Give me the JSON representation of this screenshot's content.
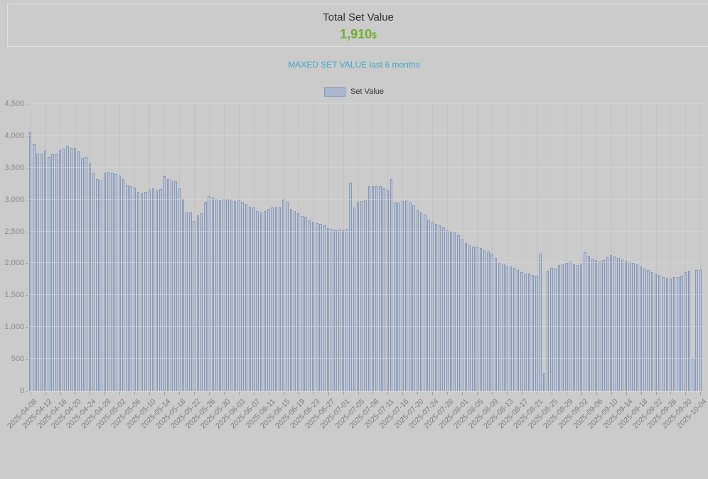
{
  "header": {
    "title": "Total Set Value",
    "value": "1,910",
    "currency_suffix": "$"
  },
  "subtitle": "MAXED SET VALUE last 6 months",
  "legend": {
    "items": [
      {
        "label": "Set Value"
      }
    ]
  },
  "colors": {
    "page_bg": "#cbcbcb",
    "accent_green": "#6fae2d",
    "accent_teal": "#3da8c5",
    "bar_fill": "#a9b7d1",
    "bar_light": "#c6cfe2",
    "bar_border": "#8294b7"
  },
  "chart_data": {
    "type": "bar",
    "title": "MAXED SET VALUE last 6 months",
    "legend_entries": [
      "Set Value"
    ],
    "legend_position": "top-center",
    "grid": true,
    "ylim": [
      0,
      4500
    ],
    "y_tick_step": 500,
    "bars_per_x_tick": 4,
    "x_tick_labels": [
      "2025-04-08",
      "2025-04-12",
      "2025-04-16",
      "2025-04-20",
      "2025-04-24",
      "2025-04-28",
      "2025-05-02",
      "2025-05-06",
      "2025-05-10",
      "2025-05-14",
      "2025-05-18",
      "2025-05-22",
      "2025-05-26",
      "2025-05-30",
      "2025-06-03",
      "2025-06-07",
      "2025-06-11",
      "2025-06-15",
      "2025-06-19",
      "2025-06-23",
      "2025-06-27",
      "2025-07-01",
      "2025-07-05",
      "2025-07-08",
      "2025-07-11",
      "2025-07-16",
      "2025-07-20",
      "2025-07-24",
      "2025-07-28",
      "2025-08-01",
      "2025-08-05",
      "2025-08-09",
      "2025-08-13",
      "2025-08-17",
      "2025-08-21",
      "2025-08-25",
      "2025-08-29",
      "2025-09-02",
      "2025-09-06",
      "2025-09-10",
      "2025-09-14",
      "2025-09-18",
      "2025-09-22",
      "2025-09-26",
      "2025-09-30",
      "2025-10-04"
    ],
    "series": [
      {
        "name": "Set Value",
        "values": [
          4050,
          3870,
          3720,
          3725,
          3760,
          3670,
          3705,
          3720,
          3780,
          3795,
          3840,
          3810,
          3815,
          3750,
          3655,
          3660,
          3570,
          3415,
          3320,
          3300,
          3415,
          3430,
          3420,
          3395,
          3370,
          3320,
          3225,
          3210,
          3190,
          3115,
          3095,
          3115,
          3150,
          3180,
          3145,
          3165,
          3360,
          3320,
          3295,
          3285,
          3170,
          3010,
          2800,
          2800,
          2660,
          2750,
          2790,
          2965,
          3050,
          3035,
          3010,
          2985,
          3010,
          3005,
          2995,
          2975,
          2985,
          2965,
          2930,
          2890,
          2875,
          2815,
          2800,
          2815,
          2855,
          2875,
          2890,
          2885,
          3005,
          2965,
          2855,
          2815,
          2780,
          2745,
          2725,
          2670,
          2650,
          2630,
          2615,
          2595,
          2555,
          2540,
          2520,
          2525,
          2520,
          2540,
          3265,
          2875,
          2965,
          2975,
          2980,
          3205,
          3210,
          3210,
          3210,
          3180,
          3150,
          3320,
          2950,
          2955,
          2970,
          2985,
          2955,
          2910,
          2840,
          2800,
          2760,
          2690,
          2650,
          2620,
          2590,
          2560,
          2520,
          2500,
          2480,
          2440,
          2370,
          2320,
          2280,
          2260,
          2250,
          2240,
          2210,
          2180,
          2150,
          2080,
          2020,
          1990,
          1965,
          1945,
          1930,
          1890,
          1855,
          1840,
          1835,
          1815,
          1800,
          2150,
          280,
          1880,
          1930,
          1920,
          1975,
          1985,
          2005,
          2030,
          1985,
          1975,
          1995,
          2170,
          2120,
          2075,
          2055,
          2030,
          2045,
          2090,
          2130,
          2105,
          2080,
          2060,
          2040,
          2020,
          2000,
          1980,
          1950,
          1920,
          1890,
          1860,
          1840,
          1820,
          1780,
          1770,
          1765,
          1780,
          1780,
          1800,
          1865,
          1880,
          510,
          1895,
          1910
        ]
      }
    ]
  }
}
